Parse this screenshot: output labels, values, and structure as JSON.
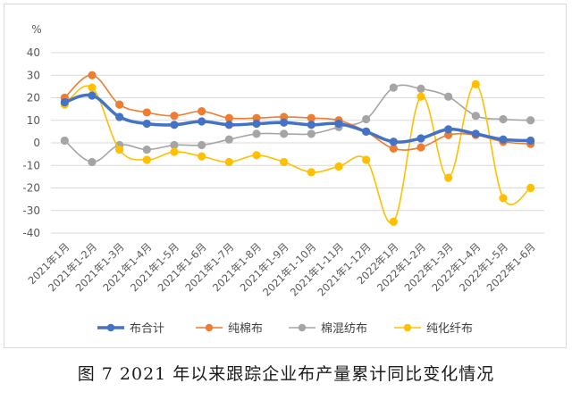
{
  "caption": "图 7   2021 年以来跟踪企业布产量累计同比变化情况",
  "chart_data": {
    "type": "line",
    "title": "",
    "ylabel": "%",
    "xlabel": "",
    "ylim": [
      -40,
      40
    ],
    "yticks": [
      40,
      30,
      20,
      10,
      0,
      -10,
      -20,
      -30,
      -40
    ],
    "grid": true,
    "legend_position": "bottom",
    "categories": [
      "2021年1月",
      "2021年1-2月",
      "2021年1-3月",
      "2021年1-4月",
      "2021年1-5月",
      "2021年1-6月",
      "2021年1-7月",
      "2021年1-8月",
      "2021年1-9月",
      "2021年1-10月",
      "2021年1-11月",
      "2021年1-12月",
      "2022年1月",
      "2022年1-2月",
      "2022年1-3月",
      "2022年1-4月",
      "2022年1-5月",
      "2022年1-6月"
    ],
    "series": [
      {
        "name": "布合计",
        "color": "#4472C4",
        "values": [
          18,
          21,
          11.5,
          8.5,
          8,
          9.5,
          8,
          8.5,
          9,
          8,
          8.5,
          5,
          0.5,
          2,
          6,
          4,
          1.5,
          1
        ]
      },
      {
        "name": "纯棉布",
        "color": "#ED7D31",
        "values": [
          20,
          30,
          17,
          13.5,
          12,
          14,
          11,
          11,
          11.5,
          11,
          10,
          5,
          -2.5,
          -2,
          3.5,
          3.5,
          0.5,
          -0.5
        ]
      },
      {
        "name": "棉混纺布",
        "color": "#A5A5A5",
        "values": [
          1,
          -8.5,
          -1,
          -3,
          -1,
          -1,
          1.5,
          4,
          4,
          4,
          7,
          10.5,
          24.5,
          24,
          20.5,
          12,
          10.5,
          10
        ]
      },
      {
        "name": "纯化纤布",
        "color": "#FFC000",
        "values": [
          17,
          24.5,
          -3,
          -7.5,
          -4,
          -6,
          -8.5,
          -5.5,
          -8.5,
          -13,
          -10.5,
          -7.5,
          -35,
          20.5,
          -15.5,
          26,
          -24.5,
          -20
        ]
      }
    ]
  }
}
